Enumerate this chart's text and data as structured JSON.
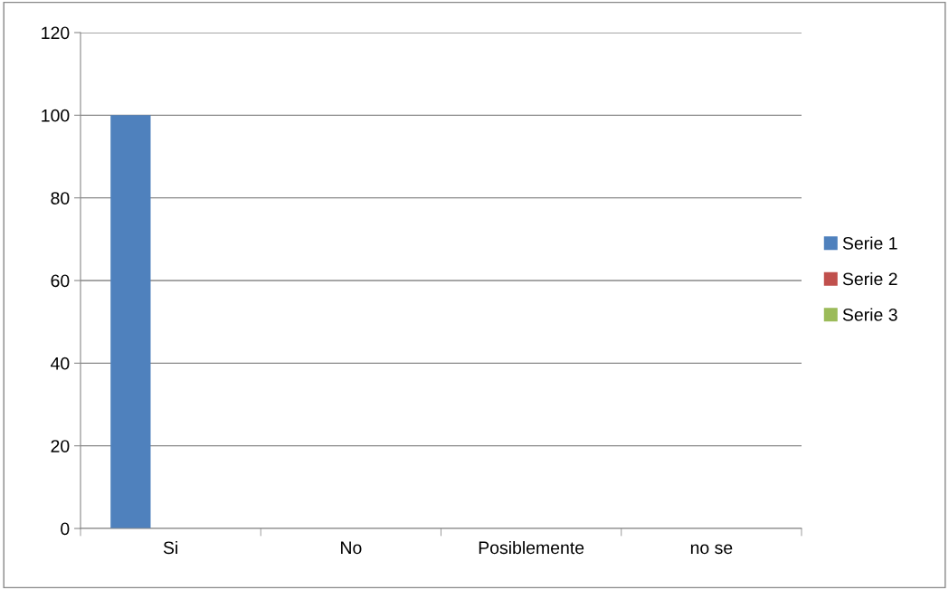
{
  "chart_data": {
    "type": "bar",
    "categories": [
      "Si",
      "No",
      "Posiblemente",
      "no se"
    ],
    "series": [
      {
        "name": "Serie 1",
        "color": "#4f81bd",
        "values": [
          100,
          0,
          0,
          0
        ]
      },
      {
        "name": "Serie 2",
        "color": "#c0504d",
        "values": [
          0,
          0,
          0,
          0
        ]
      },
      {
        "name": "Serie 3",
        "color": "#9bbb59",
        "values": [
          0,
          0,
          0,
          0
        ]
      }
    ],
    "ylim": [
      0,
      120
    ],
    "yticks": [
      0,
      20,
      40,
      60,
      80,
      100,
      120
    ],
    "grid": "y",
    "legend": "right"
  }
}
